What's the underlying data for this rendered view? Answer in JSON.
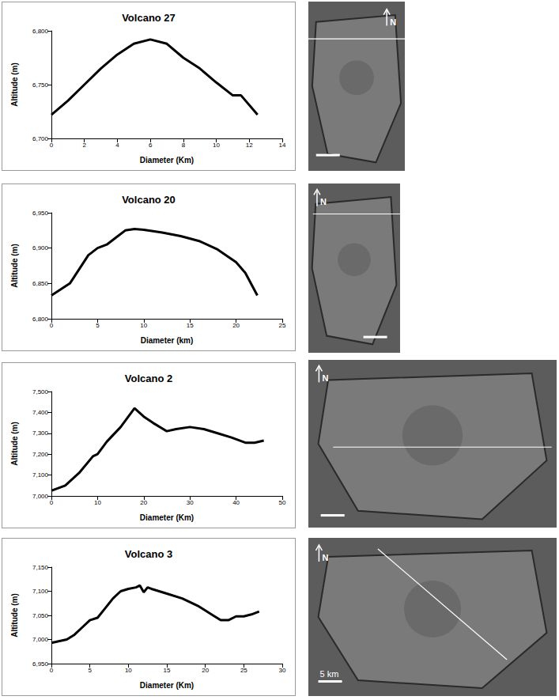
{
  "chart_data": [
    {
      "type": "line",
      "title": "Volcano 27",
      "x_label": "Diameter (Km)",
      "y_label": "Altitude (m)",
      "x": [
        0,
        1,
        2,
        3,
        4,
        5,
        6,
        7,
        8,
        9,
        10,
        11,
        11.5,
        12.5
      ],
      "values": [
        6722,
        6735,
        6750,
        6765,
        6778,
        6788,
        6792,
        6788,
        6775,
        6765,
        6752,
        6740,
        6740,
        6722
      ],
      "color": "#000000",
      "xlim": [
        0,
        14
      ],
      "xticks": [
        0,
        2,
        4,
        6,
        8,
        10,
        12,
        14
      ],
      "ylim": [
        6700,
        6800
      ],
      "yticks": [
        6700,
        6750,
        6800
      ],
      "grid": false
    },
    {
      "type": "line",
      "title": "Volcano 20",
      "x_label": "Diameter (km)",
      "y_label": "Altitude (m)",
      "x": [
        0,
        2,
        4,
        5,
        6,
        7,
        8,
        9,
        10,
        12,
        14,
        16,
        18,
        20,
        21,
        22.3
      ],
      "values": [
        6833,
        6850,
        6890,
        6900,
        6905,
        6915,
        6925,
        6927,
        6926,
        6922,
        6917,
        6910,
        6898,
        6880,
        6865,
        6833
      ],
      "color": "#000000",
      "xlim": [
        0,
        25
      ],
      "xticks": [
        0,
        5,
        10,
        15,
        20,
        25
      ],
      "ylim": [
        6800,
        6950
      ],
      "yticks": [
        6800,
        6850,
        6900,
        6950
      ],
      "grid": false
    },
    {
      "type": "line",
      "title": "Volcano 2",
      "x_label": "Diameter (Km)",
      "y_label": "Altitude (m)",
      "x": [
        0,
        3,
        6,
        9,
        10,
        12,
        15,
        18,
        20,
        22,
        25,
        27,
        30,
        33,
        36,
        39,
        42,
        44,
        46
      ],
      "values": [
        7025,
        7050,
        7110,
        7190,
        7200,
        7260,
        7330,
        7420,
        7380,
        7350,
        7310,
        7320,
        7330,
        7320,
        7300,
        7280,
        7255,
        7255,
        7265
      ],
      "color": "#000000",
      "xlim": [
        0,
        50
      ],
      "xticks": [
        0,
        10,
        20,
        30,
        40,
        50
      ],
      "ylim": [
        7000,
        7500
      ],
      "yticks": [
        7000,
        7100,
        7200,
        7300,
        7400,
        7500
      ],
      "grid": false
    },
    {
      "type": "line",
      "title": "Volcano 3",
      "x_label": "Diameter (Km)",
      "y_label": "Altitude (m)",
      "x": [
        0,
        2,
        3,
        4,
        5,
        6,
        7,
        8,
        9,
        10,
        11,
        11.5,
        12,
        12.5,
        13,
        15,
        17,
        19,
        21,
        22,
        23,
        24,
        25,
        26,
        27
      ],
      "values": [
        6993,
        7000,
        7010,
        7025,
        7040,
        7045,
        7065,
        7085,
        7100,
        7105,
        7108,
        7112,
        7098,
        7108,
        7105,
        7095,
        7085,
        7070,
        7050,
        7040,
        7040,
        7048,
        7048,
        7052,
        7058
      ],
      "color": "#000000",
      "xlim": [
        0,
        30
      ],
      "xticks": [
        0,
        5,
        10,
        15,
        20,
        25,
        30
      ],
      "ylim": [
        6950,
        7150
      ],
      "yticks": [
        6950,
        7000,
        7050,
        7100,
        7150
      ],
      "grid": false
    }
  ],
  "images": [
    {
      "north": "N"
    },
    {
      "north": "N"
    },
    {
      "north": "N"
    },
    {
      "north": "N",
      "scale_label": "5 km"
    }
  ]
}
